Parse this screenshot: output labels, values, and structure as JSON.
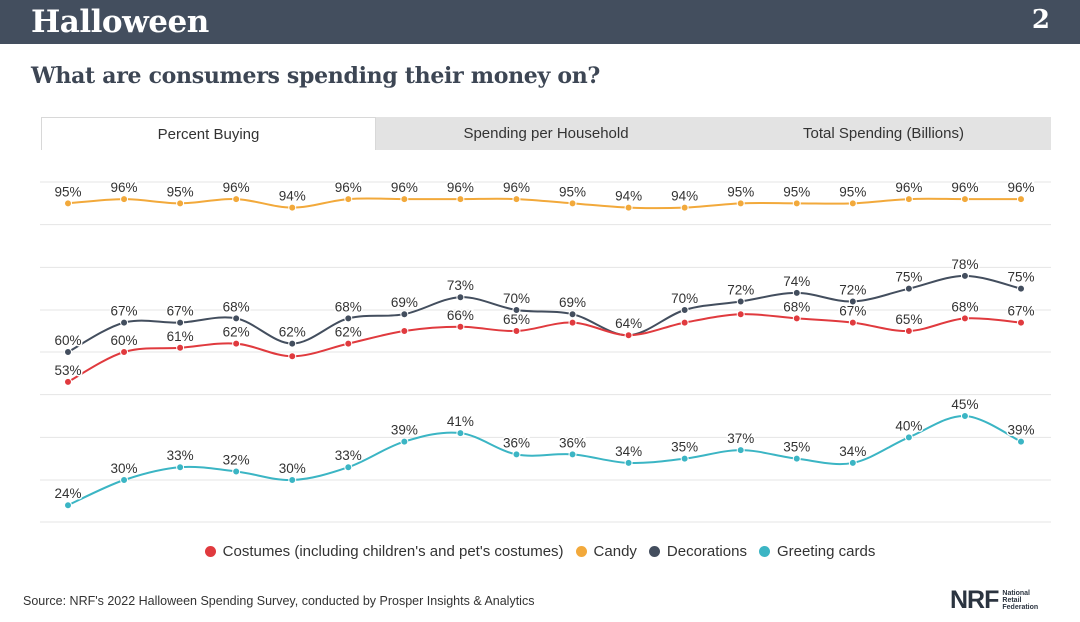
{
  "header": {
    "title": "Halloween",
    "page_number": "2"
  },
  "subtitle": "What are consumers spending their money on?",
  "tabs": [
    {
      "label": "Percent Buying",
      "active": true
    },
    {
      "label": "Spending per Household",
      "active": false
    },
    {
      "label": "Total Spending (Billions)",
      "active": false
    }
  ],
  "chart_data": {
    "type": "line",
    "x": [
      1,
      2,
      3,
      4,
      5,
      6,
      7,
      8,
      9,
      10,
      11,
      12,
      13,
      14,
      15,
      16,
      17,
      18
    ],
    "ylim": [
      0,
      100
    ],
    "grid": true,
    "legend_position": "bottom",
    "series": [
      {
        "name": "Candy",
        "color": "#f2a93b",
        "values": [
          95,
          96,
          95,
          96,
          94,
          96,
          96,
          96,
          96,
          95,
          94,
          94,
          95,
          95,
          95,
          96,
          96,
          96
        ],
        "labels": [
          "95%",
          "96%",
          "95%",
          "96%",
          "94%",
          "96%",
          "96%",
          "96%",
          "96%",
          "95%",
          "94%",
          "94%",
          "95%",
          "95%",
          "95%",
          "96%",
          "96%",
          "96%"
        ]
      },
      {
        "name": "Decorations",
        "color": "#434e5e",
        "values": [
          60,
          67,
          67,
          68,
          62,
          68,
          69,
          73,
          70,
          69,
          64,
          70,
          72,
          74,
          72,
          75,
          78,
          75
        ],
        "labels": [
          "60%",
          "67%",
          "67%",
          "68%",
          "62%",
          "68%",
          "69%",
          "73%",
          "70%",
          "69%",
          "64%",
          "70%",
          "72%",
          "74%",
          "72%",
          "75%",
          "78%",
          "75%"
        ]
      },
      {
        "name": "Costumes (including children's and pet's costumes)",
        "color": "#e03a3e",
        "values": [
          53,
          60,
          61,
          62,
          59,
          62,
          65,
          66,
          65,
          67,
          64,
          67,
          69,
          68,
          67,
          65,
          68,
          67
        ],
        "labels": [
          "53%",
          "60%",
          "61%",
          "62%",
          "",
          "62%",
          "",
          "66%",
          "65%",
          "",
          "",
          "",
          "",
          "68%",
          "67%",
          "65%",
          "68%",
          "67%"
        ]
      },
      {
        "name": "Greeting cards",
        "color": "#3bb5c4",
        "values": [
          24,
          30,
          33,
          32,
          30,
          33,
          39,
          41,
          36,
          36,
          34,
          35,
          37,
          35,
          34,
          40,
          45,
          39
        ],
        "labels": [
          "24%",
          "30%",
          "33%",
          "32%",
          "30%",
          "33%",
          "39%",
          "41%",
          "36%",
          "36%",
          "34%",
          "35%",
          "37%",
          "35%",
          "34%",
          "40%",
          "45%",
          "39%"
        ]
      }
    ]
  },
  "legend": [
    {
      "label": "Costumes (including children's and pet's costumes)",
      "color": "#e03a3e"
    },
    {
      "label": "Candy",
      "color": "#f2a93b"
    },
    {
      "label": "Decorations",
      "color": "#434e5e"
    },
    {
      "label": "Greeting cards",
      "color": "#3bb5c4"
    }
  ],
  "source": "Source: NRF's 2022 Halloween Spending Survey, conducted by Prosper Insights & Analytics",
  "logo": {
    "mark": "NRF",
    "subtext": "National\nRetail\nFederation"
  }
}
